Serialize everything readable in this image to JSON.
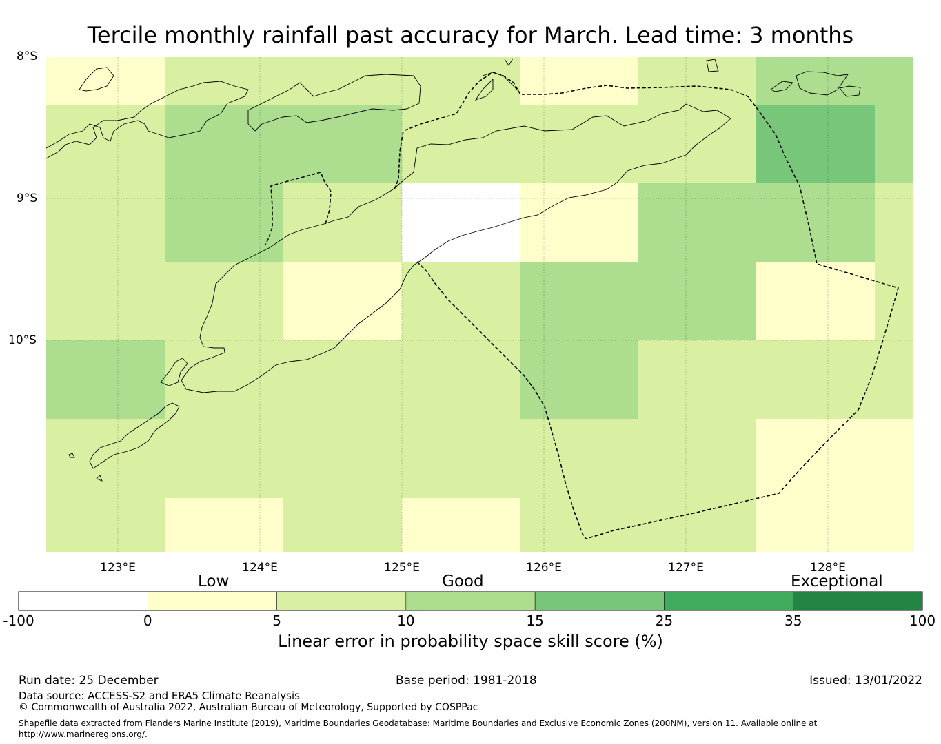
{
  "title": "Tercile monthly rainfall past accuracy for March. Lead time: 3 months",
  "lat_labels": [
    "8°S",
    "9°S",
    "10°S"
  ],
  "lon_labels": [
    "123°E",
    "124°E",
    "125°E",
    "126°E",
    "127°E",
    "128°E"
  ],
  "categories": [
    "Low",
    "Good",
    "Exceptional"
  ],
  "colorbar": {
    "ticks": [
      "-100",
      "0",
      "5",
      "10",
      "15",
      "25",
      "35",
      "100"
    ],
    "colors": [
      "#ffffff",
      "#ffffcc",
      "#d9f0a3",
      "#addd8e",
      "#78c679",
      "#41ab5d",
      "#238443"
    ],
    "label": "Linear error in probability space skill score (%)"
  },
  "grid_cells": {
    "description_legend": "class index per cell: 0=-100..0 white, 1=0-5, 2=5-10, 3=10-15, 4=15-25",
    "rows": [
      [
        1,
        2,
        2,
        2,
        1,
        2,
        3,
        3
      ],
      [
        2,
        3,
        3,
        2,
        2,
        2,
        4,
        3
      ],
      [
        2,
        3,
        2,
        0,
        1,
        3,
        3,
        2
      ],
      [
        2,
        2,
        1,
        2,
        3,
        3,
        1,
        2
      ],
      [
        3,
        2,
        2,
        2,
        3,
        2,
        2,
        2
      ],
      [
        2,
        2,
        2,
        2,
        2,
        2,
        1,
        1
      ],
      [
        2,
        1,
        2,
        1,
        2,
        2,
        1,
        1
      ]
    ]
  },
  "footer": {
    "run_date": "Run date: 25 December",
    "base_period": "Base period: 1981-2018",
    "issued": "Issued: 13/01/2022",
    "data_source": "Data source: ACCESS-S2 and ERA5 Climate Reanalysis",
    "copyright": "© Commonwealth of Australia 2022, Australian Bureau of Meteorology, Supported by COSPPac",
    "shapefile_line1": "Shapefile data extracted from Flanders Marine Institute (2019), Maritime Boundaries Geodatabase: Maritime Boundaries and Exclusive Economic Zones (200NM), version 11. Available online at",
    "shapefile_line2": "http://www.marineregions.org/."
  }
}
